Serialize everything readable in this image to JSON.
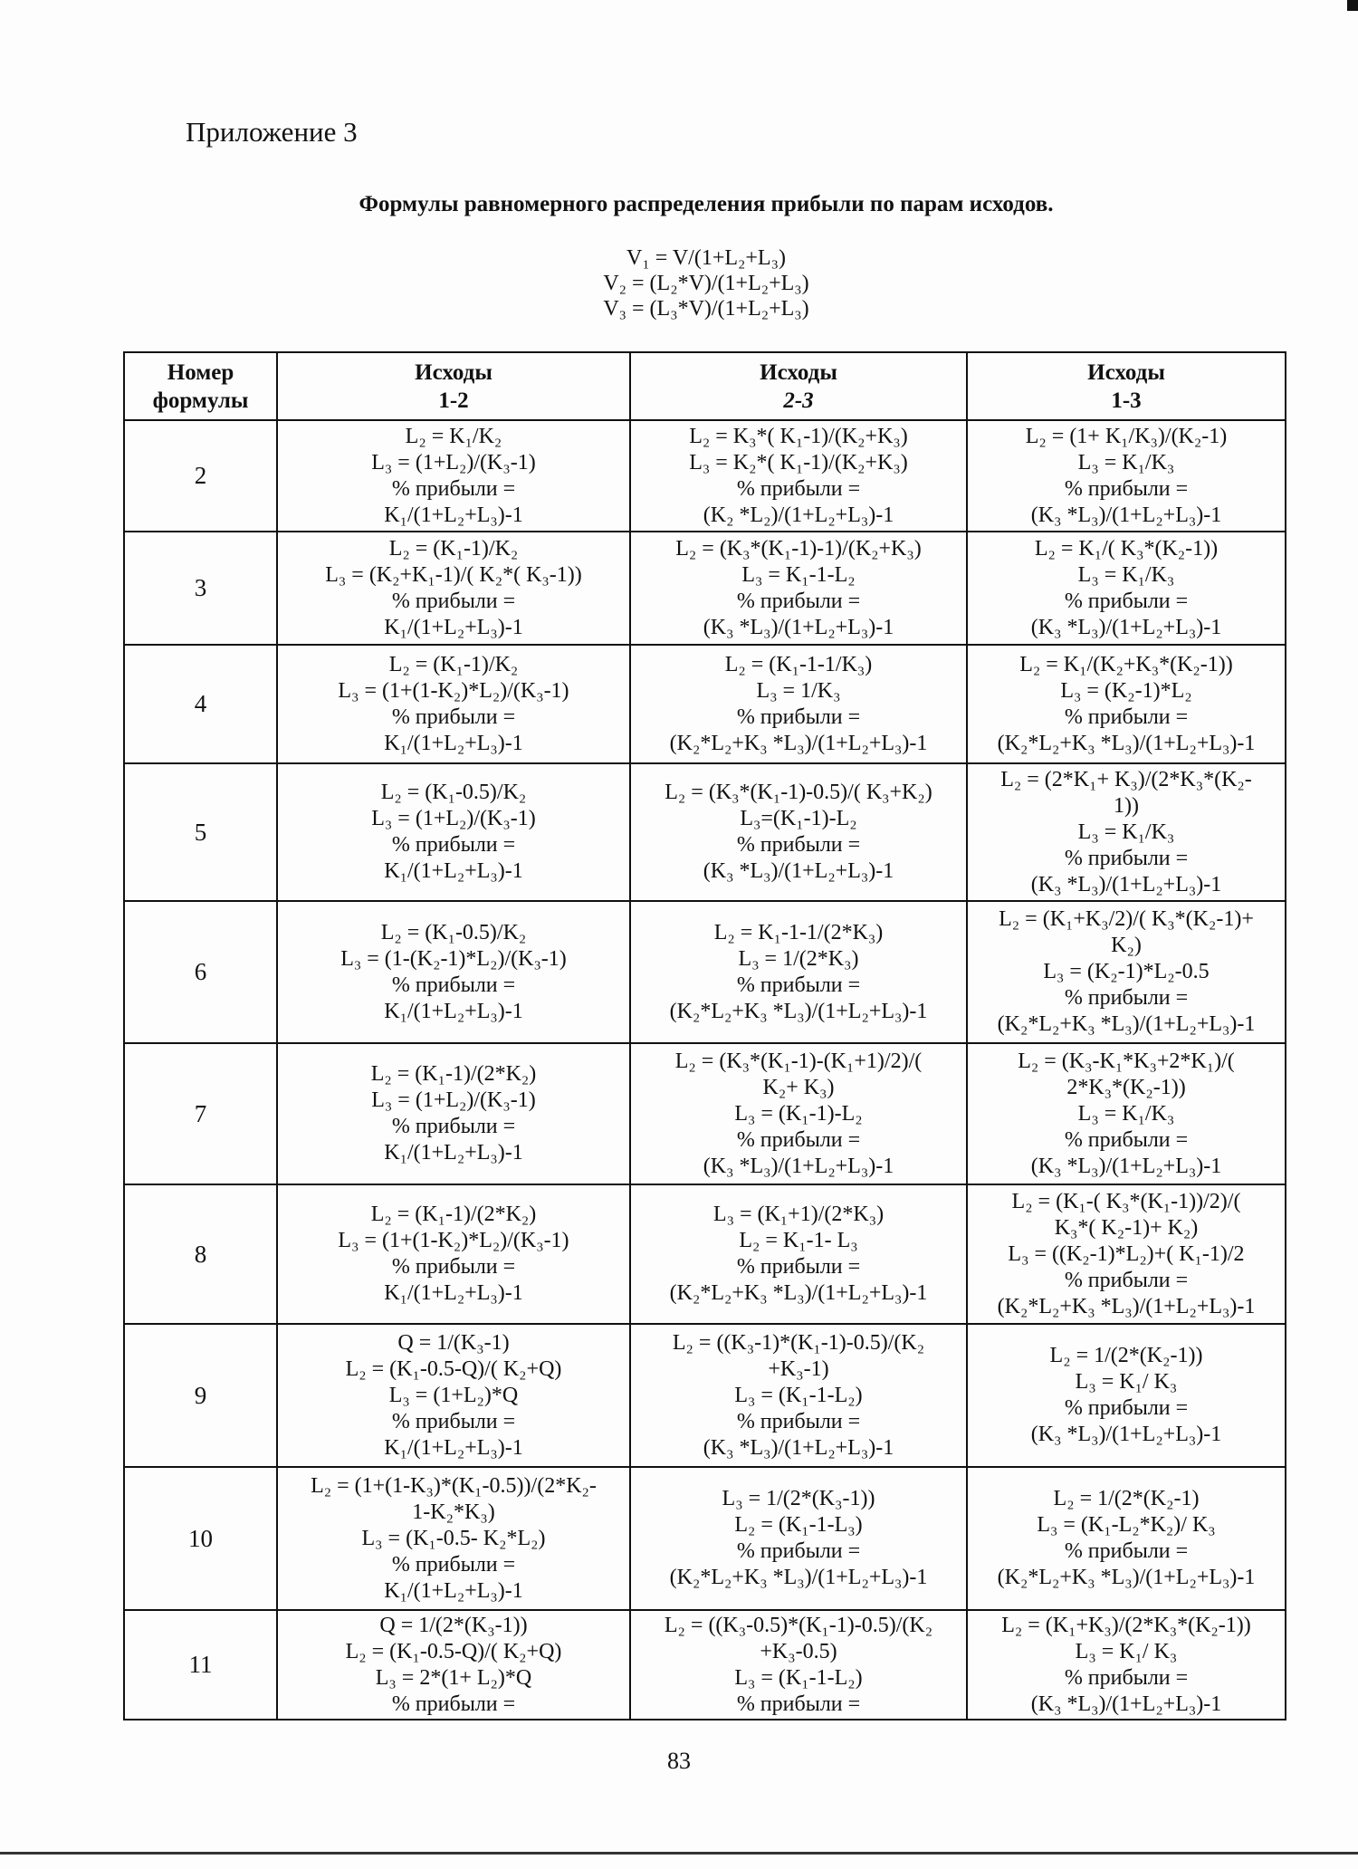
{
  "appendix_title": "Приложение 3",
  "heading": "Формулы равномерного распределения прибыли по парам исходов.",
  "v_formulas": [
    "V₁ = V/(1+L₂+L₃)",
    "V₂ = (L₂*V)/(1+L₂+L₃)",
    "V₃ = (L₃*V)/(1+L₂+L₃)"
  ],
  "table": {
    "headers": [
      {
        "line1": "Номер",
        "line2": "формулы"
      },
      {
        "line1": "Исходы",
        "line2": "1-2"
      },
      {
        "line1": "Исходы",
        "line2": "2-3"
      },
      {
        "line1": "Исходы",
        "line2": "1-3"
      }
    ],
    "rows": [
      {
        "num": "2",
        "c12": [
          "L₂ = K₁/K₂",
          "L₃ = (1+L₂)/(K₃-1)",
          "% прибыли =",
          "K₁/(1+L₂+L₃)-1"
        ],
        "c23": [
          "L₂ = K₃*( K₁-1)/(K₂+K₃)",
          "L₃ = K₂*( K₁-1)/(K₂+K₃)",
          "% прибыли =",
          "(K₂ *L₂)/(1+L₂+L₃)-1"
        ],
        "c13": [
          "L₂ = (1+ K₁/K₃)/(K₂-1)",
          "L₃ = K₁/K₃",
          "% прибыли =",
          "(K₃ *L₃)/(1+L₂+L₃)-1"
        ]
      },
      {
        "num": "3",
        "c12": [
          "L₂ = (K₁-1)/K₂",
          "L₃ = (K₂+K₁-1)/( K₂*( K₃-1))",
          "% прибыли =",
          "K₁/(1+L₂+L₃)-1"
        ],
        "c23": [
          "L₂ = (K₃*(K₁-1)-1)/(K₂+K₃)",
          "L₃ = K₁-1-L₂",
          "% прибыли =",
          "(K₃ *L₃)/(1+L₂+L₃)-1"
        ],
        "c13": [
          "L₂ = K₁/( K₃*(K₂-1))",
          "L₃ = K₁/K₃",
          "% прибыли =",
          "(K₃ *L₃)/(1+L₂+L₃)-1"
        ]
      },
      {
        "num": "4",
        "c12": [
          "L₂ = (K₁-1)/K₂",
          "L₃ = (1+(1-K₂)*L₂)/(K₃-1)",
          "% прибыли =",
          "K₁/(1+L₂+L₃)-1"
        ],
        "c23": [
          "L₂ = (K₁-1-1/K₃)",
          "L₃ = 1/K₃",
          "% прибыли =",
          "(K₂*L₂+K₃ *L₃)/(1+L₂+L₃)-1"
        ],
        "c13": [
          "L₂ = K₁/(K₂+K₃*(K₂-1))",
          "L₃ = (K₂-1)*L₂",
          "% прибыли =",
          "(K₂*L₂+K₃ *L₃)/(1+L₂+L₃)-1"
        ]
      },
      {
        "num": "5",
        "c12": [
          "L₂ = (K₁-0.5)/K₂",
          "L₃ = (1+L₂)/(K₃-1)",
          "% прибыли =",
          "K₁/(1+L₂+L₃)-1"
        ],
        "c23": [
          "L₂ = (K₃*(K₁-1)-0.5)/( K₃+K₂)",
          "L₃=(K₁-1)-L₂",
          "% прибыли =",
          "(K₃ *L₃)/(1+L₂+L₃)-1"
        ],
        "c13": [
          "L₂ = (2*K₁+ K₃)/(2*K₃*(K₂-",
          "1))",
          "L₃ = K₁/K₃",
          "% прибыли =",
          "(K₃ *L₃)/(1+L₂+L₃)-1"
        ]
      },
      {
        "num": "6",
        "c12": [
          "L₂ = (K₁-0.5)/K₂",
          "L₃ = (1-(K₂-1)*L₂)/(K₃-1)",
          "% прибыли =",
          "K₁/(1+L₂+L₃)-1"
        ],
        "c23": [
          "L₂ = K₁-1-1/(2*K₃)",
          "L₃ = 1/(2*K₃)",
          "% прибыли =",
          "(K₂*L₂+K₃ *L₃)/(1+L₂+L₃)-1"
        ],
        "c13": [
          "L₂ = (K₁+K₃/2)/( K₃*(K₂-1)+",
          "K₂)",
          "L₃ = (K₂-1)*L₂-0.5",
          "% прибыли =",
          "(K₂*L₂+K₃ *L₃)/(1+L₂+L₃)-1"
        ]
      },
      {
        "num": "7",
        "c12": [
          "L₂ = (K₁-1)/(2*K₂)",
          "L₃ = (1+L₂)/(K₃-1)",
          "% прибыли =",
          "K₁/(1+L₂+L₃)-1"
        ],
        "c23": [
          "L₂ = (K₃*(K₁-1)-(K₁+1)/2)/(",
          "K₂+ K₃)",
          "L₃ = (K₁-1)-L₂",
          "% прибыли =",
          "(K₃ *L₃)/(1+L₂+L₃)-1"
        ],
        "c13": [
          "L₂ = (K₃-K₁*K₃+2*K₁)/(",
          "2*K₃*(K₂-1))",
          "L₃ = K₁/K₃",
          "% прибыли =",
          "(K₃ *L₃)/(1+L₂+L₃)-1"
        ]
      },
      {
        "num": "8",
        "c12": [
          "L₂ = (K₁-1)/(2*K₂)",
          "L₃ = (1+(1-K₂)*L₂)/(K₃-1)",
          "% прибыли =",
          "K₁/(1+L₂+L₃)-1"
        ],
        "c23": [
          "L₃ = (K₁+1)/(2*K₃)",
          "L₂ = K₁-1- L₃",
          "% прибыли =",
          "(K₂*L₂+K₃ *L₃)/(1+L₂+L₃)-1"
        ],
        "c13": [
          "L₂ = (K₁-( K₃*(K₁-1))/2)/(",
          "K₃*( K₂-1)+ K₂)",
          "L₃ = ((K₂-1)*L₂)+( K₁-1)/2",
          "% прибыли =",
          "(K₂*L₂+K₃ *L₃)/(1+L₂+L₃)-1"
        ]
      },
      {
        "num": "9",
        "c12": [
          "Q = 1/(K₃-1)",
          "L₂ = (K₁-0.5-Q)/( K₂+Q)",
          "L₃ = (1+L₂)*Q",
          "% прибыли =",
          "K₁/(1+L₂+L₃)-1"
        ],
        "c23": [
          "L₂ = ((K₃-1)*(K₁-1)-0.5)/(K₂",
          "+K₃-1)",
          "L₃ = (K₁-1-L₂)",
          "% прибыли =",
          "(K₃ *L₃)/(1+L₂+L₃)-1"
        ],
        "c13": [
          "L₂ = 1/(2*(K₂-1))",
          "L₃ = K₁/ K₃",
          "% прибыли =",
          "(K₃ *L₃)/(1+L₂+L₃)-1"
        ]
      },
      {
        "num": "10",
        "c12": [
          "L₂ = (1+(1-K₃)*(K₁-0.5))/(2*K₂-",
          "1-K₂*K₃)",
          "L₃ = (K₁-0.5- K₂*L₂)",
          "% прибыли =",
          "K₁/(1+L₂+L₃)-1"
        ],
        "c23": [
          "L₃ = 1/(2*(K₃-1))",
          "L₂ = (K₁-1-L₃)",
          "% прибыли =",
          "(K₂*L₂+K₃ *L₃)/(1+L₂+L₃)-1"
        ],
        "c13": [
          "L₂ = 1/(2*(K₂-1)",
          "L₃ = (K₁-L₂*K₂)/ K₃",
          "% прибыли =",
          "(K₂*L₂+K₃ *L₃)/(1+L₂+L₃)-1"
        ]
      },
      {
        "num": "11",
        "c12": [
          "Q = 1/(2*(K₃-1))",
          "L₂ = (K₁-0.5-Q)/( K₂+Q)",
          "L₃ = 2*(1+ L₂)*Q",
          "% прибыли ="
        ],
        "c23": [
          "L₂ = ((K₃-0.5)*(K₁-1)-0.5)/(K₂",
          "+K₃-0.5)",
          "L₃ = (K₁-1-L₂)",
          "% прибыли ="
        ],
        "c13": [
          "L₂ = (K₁+K₃)/(2*K₃*(K₂-1))",
          "L₃ = K₁/ K₃",
          "% прибыли =",
          "(K₃ *L₃)/(1+L₂+L₃)-1"
        ]
      }
    ]
  },
  "page_number": "83"
}
